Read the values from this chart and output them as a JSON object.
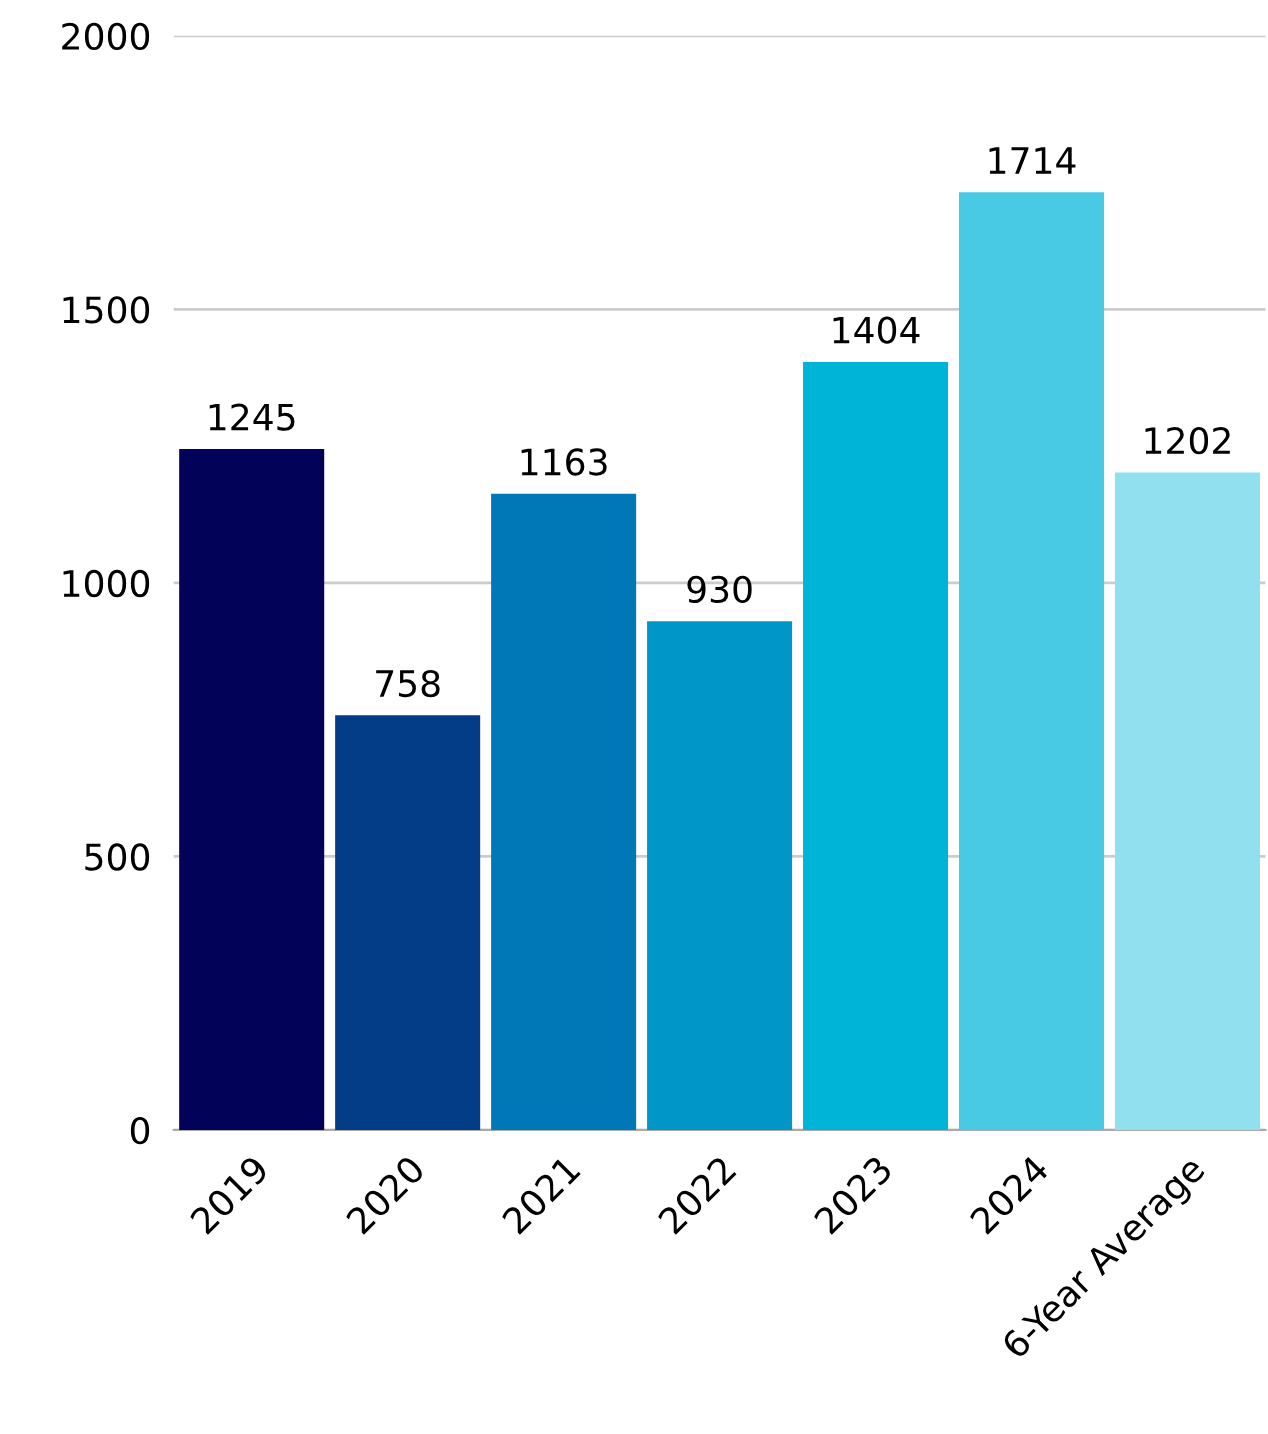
{
  "chart_data": {
    "type": "bar",
    "categories": [
      "2019",
      "2020",
      "2021",
      "2022",
      "2023",
      "2024",
      "6-Year Average"
    ],
    "values": [
      1245,
      758,
      1163,
      930,
      1404,
      1714,
      1202
    ],
    "colors": [
      "#020258",
      "#033c87",
      "#0077b6",
      "#0096c7",
      "#00b4d8",
      "#48cae4",
      "#90e0ef"
    ],
    "ylim": [
      0,
      2000
    ],
    "yticks": [
      0,
      500,
      1000,
      1500,
      2000
    ],
    "grid": "y",
    "legend": false,
    "data_labels": true
  }
}
